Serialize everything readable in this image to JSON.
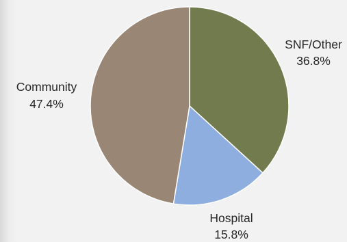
{
  "chart_data": {
    "type": "pie",
    "slices": [
      {
        "label": "SNF/Other",
        "value": 36.8,
        "value_label": "36.8%",
        "color": "#717b4e"
      },
      {
        "label": "Hospital",
        "value": 15.8,
        "value_label": "15.8%",
        "color": "#8eaee0"
      },
      {
        "label": "Community",
        "value": 47.4,
        "value_label": "47.4%",
        "color": "#9a8674"
      }
    ],
    "start_angle_deg": 0,
    "direction": "clockwise",
    "slice_border_color": "#ffffff",
    "legend": "none",
    "data_labels": "outside"
  }
}
